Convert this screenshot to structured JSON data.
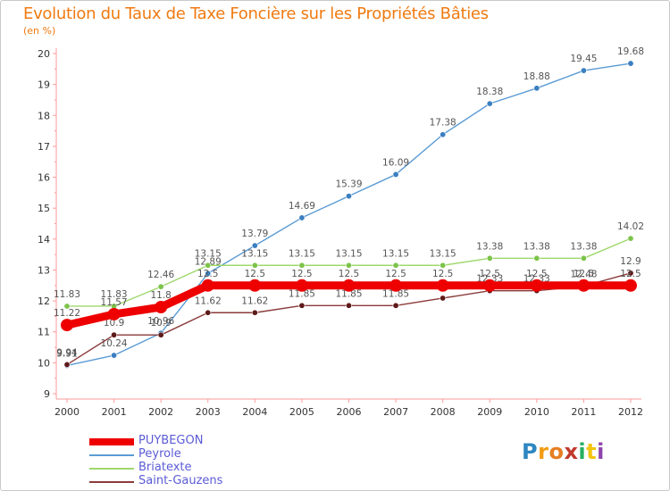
{
  "chart_data": {
    "type": "line",
    "title": "Evolution du Taux de Taxe Foncière sur les Propriétés Bâties",
    "unit_label": "(en %)",
    "xlabel": "",
    "ylabel": "(en %)",
    "categories": [
      "2000",
      "2001",
      "2002",
      "2003",
      "2004",
      "2005",
      "2006",
      "2007",
      "2008",
      "2009",
      "2010",
      "2011",
      "2012"
    ],
    "ylim": [
      9,
      20
    ],
    "yticks": [
      "9",
      "10",
      "11",
      "12",
      "13",
      "14",
      "15",
      "16",
      "17",
      "18",
      "19",
      "20"
    ],
    "grid": false,
    "series": [
      {
        "name": "Peyrole",
        "color": "#5a9bd4",
        "marker_color": "#3a7fc0",
        "values": [
          9.91,
          10.24,
          10.96,
          12.89,
          13.79,
          14.69,
          15.39,
          16.09,
          17.38,
          18.38,
          18.88,
          19.45,
          19.68
        ],
        "labels": [
          "9.91",
          "10.24",
          "10.96",
          "12.89",
          "13.79",
          "14.69",
          "15.39",
          "16.09",
          "17.38",
          "18.38",
          "18.88",
          "19.45",
          "19.68"
        ]
      },
      {
        "name": "Briatexte",
        "color": "#9ed86b",
        "marker_color": "#7cc34a",
        "values": [
          11.83,
          11.83,
          12.46,
          13.15,
          13.15,
          13.15,
          13.15,
          13.15,
          13.15,
          13.38,
          13.38,
          13.38,
          14.02
        ],
        "labels": [
          "11.83",
          "11.83",
          "12.46",
          "13.15",
          "13.15",
          "13.15",
          "13.15",
          "13.15",
          "13.15",
          "13.38",
          "13.38",
          "13.38",
          "14.02"
        ]
      },
      {
        "name": "Saint-Gauzens",
        "color": "#8b3a3a",
        "marker_color": "#5e1a1a",
        "values": [
          9.94,
          10.9,
          10.9,
          11.62,
          11.62,
          11.85,
          11.85,
          11.85,
          12.09,
          12.33,
          12.33,
          12.48,
          12.9
        ],
        "labels": [
          "9.94",
          "10.9",
          "10.9",
          "11.62",
          "11.62",
          "11.85",
          "11.85",
          "11.85",
          "12.09",
          "12.33",
          "12.33",
          "12.48",
          "12.9"
        ]
      },
      {
        "name": "PUYBEGON",
        "color": "#ee0000",
        "marker_color": "#ee0000",
        "values": [
          11.22,
          11.57,
          11.8,
          12.5,
          12.5,
          12.5,
          12.5,
          12.5,
          12.5,
          12.5,
          12.5,
          12.5,
          12.5
        ],
        "labels": [
          "11.22",
          "11.57",
          "11.8",
          "12.5",
          "12.5",
          "12.5",
          "12.5",
          "12.5",
          "12.5",
          "12.5",
          "12.5",
          "12.5",
          "12.5"
        ]
      }
    ],
    "legend": [
      {
        "name": "PUYBEGON",
        "color": "#ee0000"
      },
      {
        "name": "Peyrole",
        "color": "#5a9bd4"
      },
      {
        "name": "Briatexte",
        "color": "#9ed86b"
      },
      {
        "name": "Saint-Gauzens",
        "color": "#8b3a3a"
      }
    ],
    "legend_position": "bottom-left"
  },
  "logo": {
    "letters": [
      "P",
      "r",
      "o",
      "x",
      "i",
      "t",
      "i"
    ],
    "colors": [
      "#2e86c1",
      "#f39c12",
      "#e67e22",
      "#c0392b",
      "#27ae60",
      "#f1c40f",
      "#8e44ad"
    ]
  }
}
